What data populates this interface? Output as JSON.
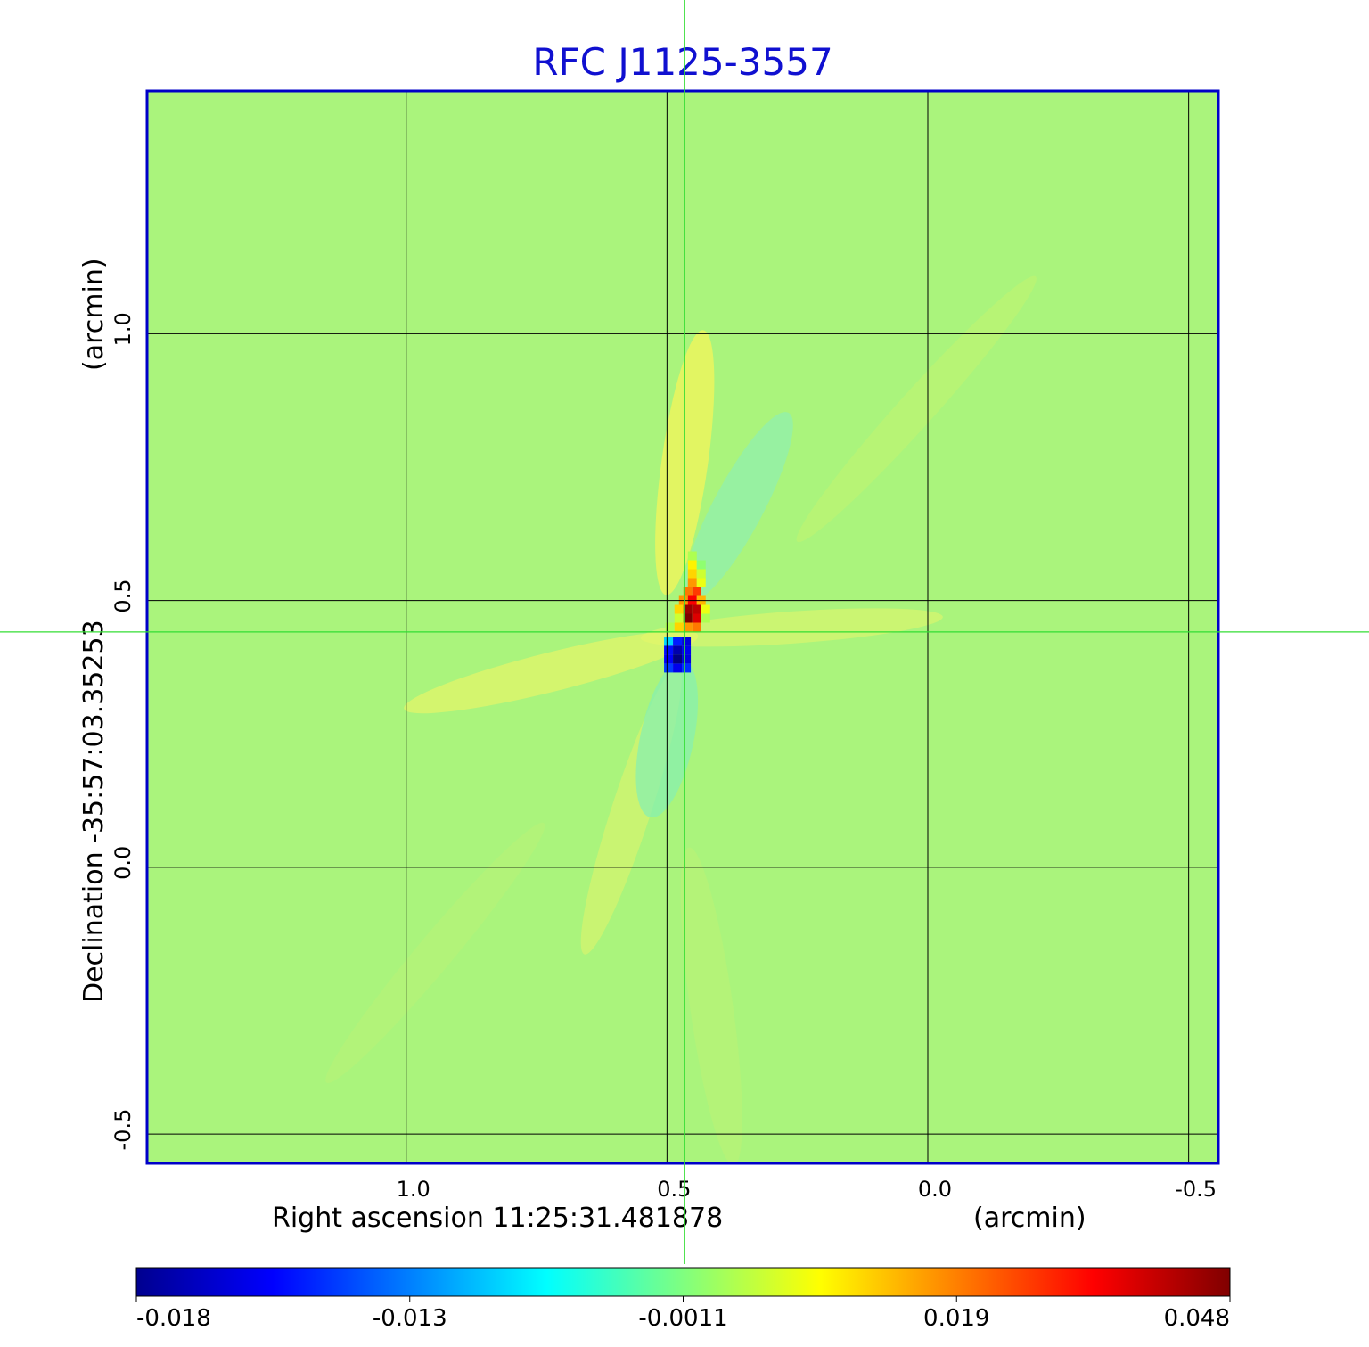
{
  "chart_data": {
    "type": "heatmap",
    "title": "RFC J1125-3557",
    "xlabel": "Right ascension  11:25:31.481878",
    "xunit": "(arcmin)",
    "ylabel": "Declination  -35:57:03.35253",
    "yunit": "(arcmin)",
    "x_ticks": [
      {
        "value": 1.0,
        "label": "1.0"
      },
      {
        "value": 0.5,
        "label": "0.5"
      },
      {
        "value": 0.0,
        "label": "0.0"
      },
      {
        "value": -0.5,
        "label": "-0.5"
      }
    ],
    "y_ticks": [
      {
        "value": 1.0,
        "label": "1.0"
      },
      {
        "value": 0.5,
        "label": "0.5"
      },
      {
        "value": 0.0,
        "label": "0.0"
      },
      {
        "value": -0.5,
        "label": "-0.5"
      }
    ],
    "xlim": [
      1.495,
      -0.557
    ],
    "ylim": [
      -0.555,
      1.455
    ],
    "crosshair": {
      "x": 0.466,
      "y": 0.441
    },
    "grid": true,
    "colormap": "jet",
    "colorbar_ticks": [
      "-0.018",
      "-0.013",
      "-0.0011",
      "0.019",
      "0.048"
    ],
    "colorbar_range": [
      -0.018,
      0.048
    ],
    "background_level": 0.0,
    "peak": {
      "x": 0.46,
      "y": 0.45,
      "value": 0.048
    },
    "trough": {
      "x": 0.48,
      "y": 0.39,
      "value": -0.018
    }
  },
  "colors": {
    "title": "#1010d0",
    "frame": "#0000c8",
    "crosshair": "#33dd33",
    "grid": "#000000"
  }
}
